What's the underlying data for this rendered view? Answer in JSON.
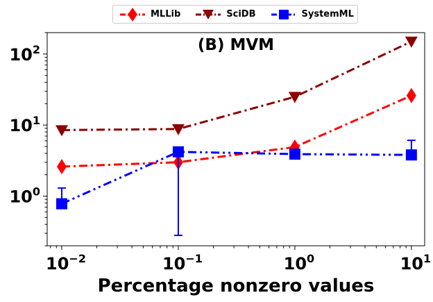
{
  "chart_data": {
    "type": "line",
    "title": "(B) MVM",
    "xlabel": "Percentage nonzero values",
    "ylabel": "",
    "xscale": "log",
    "yscale": "log",
    "xlim": [
      0.0075,
      13
    ],
    "ylim": [
      0.2,
      200
    ],
    "x": [
      0.01,
      0.1,
      1,
      10
    ],
    "x_tick_labels": [
      {
        "base": "10",
        "exp": "−2",
        "value": 0.01
      },
      {
        "base": "10",
        "exp": "−1",
        "value": 0.1
      },
      {
        "base": "10",
        "exp": "0",
        "value": 1
      },
      {
        "base": "10",
        "exp": "1",
        "value": 10
      }
    ],
    "y_tick_labels": [
      {
        "base": "10",
        "exp": "0",
        "value": 1
      },
      {
        "base": "10",
        "exp": "1",
        "value": 10
      },
      {
        "base": "10",
        "exp": "2",
        "value": 100
      }
    ],
    "legend_position": "top-center",
    "series": [
      {
        "name": "MLLib",
        "color": "#ff0000",
        "marker": "diamond",
        "line": "dash-dot",
        "values": [
          2.6,
          3.0,
          4.9,
          26
        ]
      },
      {
        "name": "SciDB",
        "color": "#8b0000",
        "marker": "triangle-down",
        "line": "dash-dot",
        "values": [
          8.5,
          8.8,
          25,
          150
        ]
      },
      {
        "name": "SystemML",
        "color": "#0000ff",
        "marker": "square",
        "line": "dash-dot-dot",
        "values": [
          0.78,
          4.2,
          3.9,
          3.8
        ],
        "error_low": [
          0.78,
          0.28,
          3.9,
          3.8
        ],
        "error_high": [
          1.3,
          4.2,
          3.9,
          6.1
        ]
      }
    ]
  }
}
